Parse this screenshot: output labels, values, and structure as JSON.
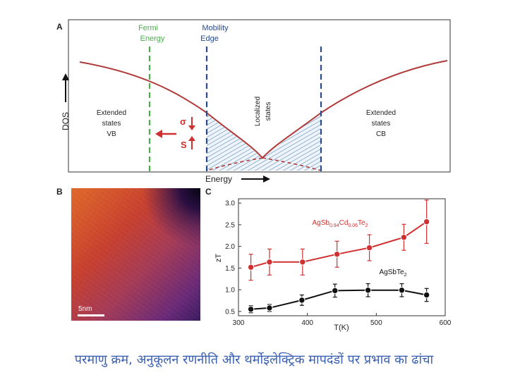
{
  "panelA": {
    "letter": "A",
    "fermi_label": [
      "Fermi",
      "Energy"
    ],
    "mobility_label": [
      "Mobility",
      "Edge"
    ],
    "dos_label": "DOS",
    "energy_label": "Energy",
    "extended_vb": [
      "Extended",
      "states",
      "VB"
    ],
    "extended_cb": [
      "Extended",
      "states",
      "CB"
    ],
    "localized": [
      "Localized",
      "states"
    ],
    "sigma": "σ",
    "s": "S"
  },
  "panelB": {
    "letter": "B",
    "scale_label": "5nm"
  },
  "panelC": {
    "letter": "C"
  },
  "caption": "परमाणु क्रम, अनुकूलन रणनीति और थर्मोइलेक्ट्रिक मापदंडों पर प्रभाव का ढांचा",
  "colors": {
    "red": "#d03030",
    "black": "#111111",
    "fermi": "#4aae4a",
    "mobility": "#2a4a8a",
    "curve": "#b03a3a",
    "caption": "#3a5fb0"
  },
  "chart_data": {
    "type": "scatter",
    "xlabel": "T(K)",
    "ylabel": "zT",
    "xlim": [
      300,
      600
    ],
    "ylim": [
      0.4,
      3.1
    ],
    "xticks": [
      300,
      400,
      500,
      600
    ],
    "yticks": [
      0.5,
      1.0,
      1.5,
      2.0,
      2.5,
      3.0
    ],
    "series": [
      {
        "name": "AgSb0.94Cd0.06Te2",
        "label_main": "AgSb",
        "label_sub1": "0.94",
        "label_mid": "Cd",
        "label_sub2": "0.06",
        "label_end": "Te",
        "label_sub3": "2",
        "color": "#d03030",
        "x": [
          318,
          345,
          393,
          443,
          490,
          540,
          573
        ],
        "y": [
          1.52,
          1.64,
          1.64,
          1.82,
          1.97,
          2.21,
          2.57
        ],
        "err": [
          0.3,
          0.3,
          0.3,
          0.3,
          0.3,
          0.3,
          0.5
        ]
      },
      {
        "name": "AgSbTe2",
        "label_main": "AgSbTe",
        "label_sub1": "2",
        "color": "#111111",
        "x": [
          318,
          345,
          392,
          440,
          488,
          537,
          573
        ],
        "y": [
          0.55,
          0.58,
          0.76,
          0.98,
          0.99,
          0.99,
          0.88
        ],
        "err": [
          0.08,
          0.08,
          0.12,
          0.15,
          0.15,
          0.15,
          0.15
        ]
      }
    ]
  }
}
